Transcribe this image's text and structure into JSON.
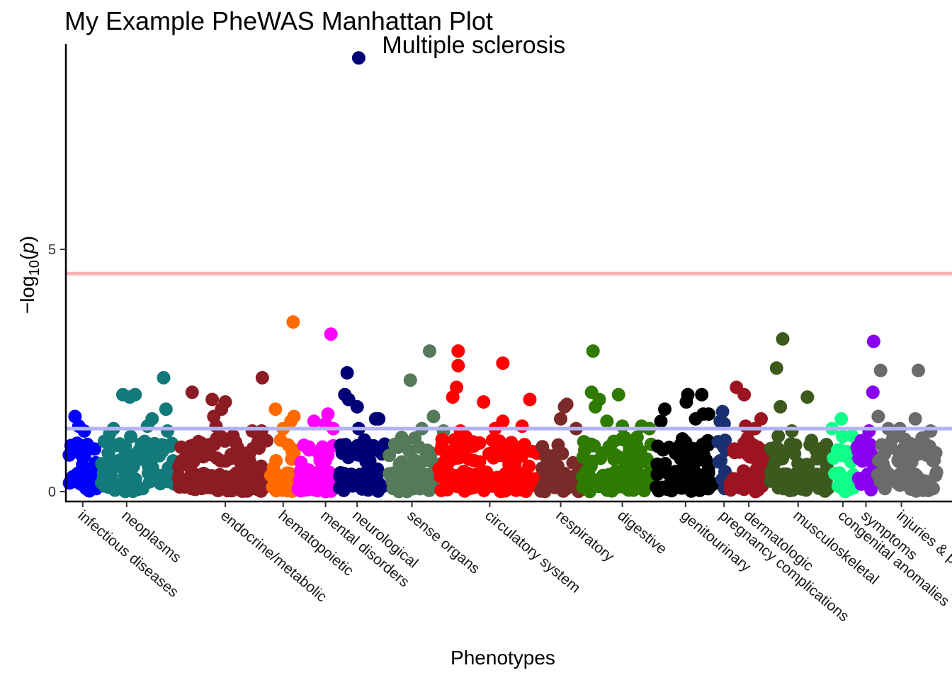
{
  "chart_data": {
    "type": "scatter",
    "title": "My Example PheWAS Manhattan Plot",
    "xlabel": "Phenotypes",
    "ylabel": "-log10(p)",
    "ylim": [
      -0.2,
      9.4
    ],
    "yticks": [
      0,
      5
    ],
    "grid": false,
    "legend": "none",
    "thresholds": [
      {
        "value": 4.5,
        "color": "#f8b4b4"
      },
      {
        "value": 1.3,
        "color": "#b3b3f5"
      }
    ],
    "categories": [
      {
        "name": "infectious diseases",
        "color": "#0000ff",
        "x_range": [
          0,
          42
        ],
        "tick_x": 20,
        "count": 46,
        "highlights": [
          [
            10,
            1.55
          ],
          [
            15,
            1.35
          ],
          [
            22,
            1.25
          ],
          [
            5,
            0.95
          ]
        ]
      },
      {
        "name": "neoplasms",
        "color": "#127a7a",
        "x_range": [
          42,
          142
        ],
        "tick_x": 77,
        "count": 90,
        "highlights": [
          [
            125,
            2.35
          ],
          [
            128,
            1.7
          ],
          [
            72,
            2.0
          ],
          [
            81,
            1.95
          ],
          [
            88,
            2.0
          ],
          [
            110,
            1.5
          ],
          [
            104,
            1.35
          ],
          [
            55,
            1.2
          ],
          [
            60,
            1.3
          ],
          [
            130,
            1.25
          ]
        ]
      },
      {
        "name": "endocrine/metabolic",
        "color": "#8c1c24",
        "x_range": [
          142,
          262
        ],
        "tick_x": 205,
        "count": 130,
        "highlights": [
          [
            253,
            2.35
          ],
          [
            162,
            2.05
          ],
          [
            188,
            1.9
          ],
          [
            205,
            1.85
          ],
          [
            200,
            1.7
          ],
          [
            190,
            1.55
          ],
          [
            193,
            1.35
          ],
          [
            240,
            1.25
          ],
          [
            252,
            1.25
          ],
          [
            215,
            1.15
          ]
        ]
      },
      {
        "name": "hematopoietic",
        "color": "#ff6b00",
        "x_range": [
          262,
          297
        ],
        "tick_x": 280,
        "count": 30,
        "highlights": [
          [
            293,
            3.5
          ],
          [
            270,
            1.7
          ],
          [
            294,
            1.55
          ],
          [
            280,
            1.3
          ],
          [
            290,
            1.45
          ]
        ]
      },
      {
        "name": "mental disorders",
        "color": "#ff00ff",
        "x_range": [
          297,
          350
        ],
        "tick_x": 335,
        "count": 50,
        "highlights": [
          [
            342,
            3.25
          ],
          [
            338,
            1.6
          ],
          [
            320,
            1.45
          ],
          [
            335,
            1.4
          ],
          [
            345,
            1.3
          ]
        ]
      },
      {
        "name": "neurological",
        "color": "#000077",
        "x_range": [
          350,
          414
        ],
        "tick_x": 376,
        "count": 60,
        "highlights": [
          [
            378,
            8.95
          ],
          [
            363,
            2.45
          ],
          [
            360,
            2.0
          ],
          [
            365,
            1.9
          ],
          [
            376,
            1.75
          ],
          [
            400,
            1.5
          ],
          [
            404,
            1.5
          ],
          [
            378,
            1.3
          ]
        ]
      },
      {
        "name": "sense organs",
        "color": "#557a5a",
        "x_range": [
          414,
          480
        ],
        "tick_x": 447,
        "count": 62,
        "highlights": [
          [
            470,
            2.9
          ],
          [
            445,
            2.3
          ],
          [
            475,
            1.55
          ],
          [
            460,
            1.3
          ],
          [
            488,
            1.25
          ]
        ]
      },
      {
        "name": "circulatory system",
        "color": "#ff0000",
        "x_range": [
          480,
          612
        ],
        "tick_x": 548,
        "count": 130,
        "highlights": [
          [
            507,
            2.9
          ],
          [
            507,
            2.6
          ],
          [
            565,
            2.65
          ],
          [
            505,
            2.15
          ],
          [
            500,
            1.95
          ],
          [
            600,
            1.9
          ],
          [
            540,
            1.85
          ],
          [
            565,
            1.45
          ],
          [
            510,
            1.25
          ],
          [
            590,
            1.35
          ],
          [
            555,
            1.3
          ]
        ]
      },
      {
        "name": "respiratory",
        "color": "#7a2a28",
        "x_range": [
          612,
          666
        ],
        "tick_x": 640,
        "count": 50,
        "highlights": [
          [
            648,
            1.8
          ],
          [
            645,
            1.75
          ],
          [
            640,
            1.5
          ],
          [
            660,
            1.3
          ]
        ]
      },
      {
        "name": "digestive",
        "color": "#2f7a00",
        "x_range": [
          666,
          762
        ],
        "tick_x": 720,
        "count": 95,
        "highlights": [
          [
            682,
            2.9
          ],
          [
            680,
            2.05
          ],
          [
            715,
            2.0
          ],
          [
            690,
            1.9
          ],
          [
            685,
            1.75
          ],
          [
            700,
            1.45
          ],
          [
            720,
            1.35
          ],
          [
            745,
            1.35
          ],
          [
            755,
            1.3
          ]
        ]
      },
      {
        "name": "genitourinary",
        "color": "#000000",
        "x_range": [
          762,
          842
        ],
        "tick_x": 802,
        "count": 85,
        "highlights": [
          [
            805,
            2.0
          ],
          [
            823,
            2.0
          ],
          [
            803,
            1.85
          ],
          [
            775,
            1.7
          ],
          [
            825,
            1.6
          ],
          [
            832,
            1.6
          ],
          [
            815,
            1.5
          ],
          [
            770,
            1.45
          ]
        ]
      },
      {
        "name": "pregnancy complications",
        "color": "#1a3070",
        "x_range": [
          842,
          858
        ],
        "tick_x": 852,
        "count": 14,
        "highlights": [
          [
            850,
            1.65
          ],
          [
            852,
            1.4
          ],
          [
            847,
            1.45
          ]
        ]
      },
      {
        "name": "dermatologic",
        "color": "#9c1421",
        "x_range": [
          858,
          910
        ],
        "tick_x": 884,
        "count": 50,
        "highlights": [
          [
            868,
            2.15
          ],
          [
            878,
            2.0
          ],
          [
            900,
            1.5
          ],
          [
            880,
            1.35
          ],
          [
            892,
            1.3
          ]
        ]
      },
      {
        "name": "musculoskeletal",
        "color": "#3d5a1e",
        "x_range": [
          910,
          990
        ],
        "tick_x": 948,
        "count": 75,
        "highlights": [
          [
            928,
            3.15
          ],
          [
            920,
            2.55
          ],
          [
            960,
            1.95
          ],
          [
            925,
            1.75
          ],
          [
            940,
            1.25
          ]
        ]
      },
      {
        "name": "congenital anomalies",
        "color": "#11ff88",
        "x_range": [
          990,
          1022
        ],
        "tick_x": 1006,
        "count": 26,
        "highlights": [
          [
            1004,
            1.5
          ],
          [
            992,
            1.3
          ],
          [
            1018,
            1.15
          ]
        ]
      },
      {
        "name": "symptoms",
        "color": "#8800ee",
        "x_range": [
          1022,
          1048
        ],
        "tick_x": 1036,
        "count": 24,
        "highlights": [
          [
            1046,
            3.1
          ],
          [
            1045,
            2.05
          ],
          [
            1040,
            1.25
          ],
          [
            1030,
            1.05
          ]
        ]
      },
      {
        "name": "injuries & poisonings",
        "color": "#6b6b6b",
        "x_range": [
          1048,
          1132
        ],
        "tick_x": 1082,
        "count": 75,
        "highlights": [
          [
            1055,
            2.5
          ],
          [
            1104,
            2.5
          ],
          [
            1052,
            1.55
          ],
          [
            1100,
            1.5
          ],
          [
            1065,
            1.3
          ],
          [
            1080,
            1.3
          ],
          [
            1120,
            1.25
          ]
        ]
      }
    ],
    "annotations": [
      {
        "text": "Multiple sclerosis",
        "x": 378,
        "y": 8.95
      }
    ]
  }
}
